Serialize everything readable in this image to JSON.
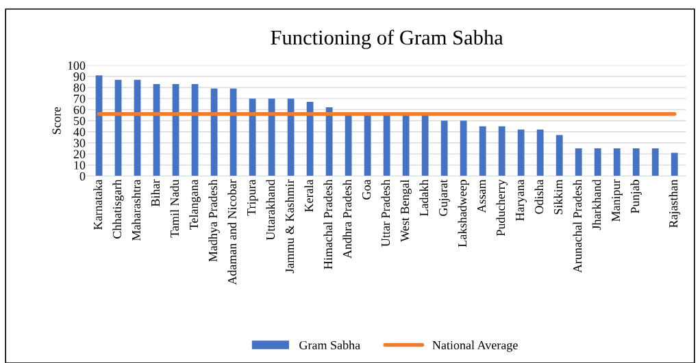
{
  "chart_data": {
    "type": "bar",
    "title": "Functioning of Gram Sabha",
    "ylabel": "Score",
    "categories": [
      "Karnataka",
      "Chhatisgarh",
      "Maharashtra",
      "Bihar",
      "Tamil Nadu",
      "Telangana",
      "Madhya Pradesh",
      "Adaman and Nicobar",
      "Tripura",
      "Uttarakhand",
      "Jammu & Kashmir",
      "Kerala",
      "Himachal Pradesh",
      "Andhra Pradesh",
      "Goa",
      "Uttar Pradesh",
      "West Bengal",
      "Ladakh",
      "Gujarat",
      "Lakshadweep",
      "Assam",
      "Puducherry",
      "Haryana",
      "Odisha",
      "Sikkim",
      "Arunachal Pradesh",
      "Jharkhand",
      "Manipur",
      "Punjab",
      null,
      "Rajasthan"
    ],
    "series": [
      {
        "name": "Gram Sabha",
        "color": "#4472c4",
        "values": [
          91,
          87,
          87,
          83,
          83,
          83,
          79,
          79,
          70,
          70,
          70,
          67,
          62,
          55,
          55,
          55,
          55,
          55,
          50,
          50,
          45,
          45,
          42,
          42,
          37,
          25,
          25,
          25,
          25,
          25,
          21
        ]
      },
      {
        "name": "National Average",
        "type": "line",
        "color": "#ed7d31",
        "values": [
          56,
          56,
          56,
          56,
          56,
          56,
          56,
          56,
          56,
          56,
          56,
          56,
          56,
          56,
          56,
          56,
          56,
          56,
          56,
          56,
          56,
          56,
          56,
          56,
          56,
          56,
          56,
          56,
          56,
          56,
          56
        ]
      }
    ],
    "ylim": [
      0,
      100
    ],
    "yticks": [
      0,
      10,
      20,
      30,
      40,
      50,
      60,
      70,
      80,
      90,
      100
    ],
    "grid": "y",
    "legend": "bottom"
  }
}
